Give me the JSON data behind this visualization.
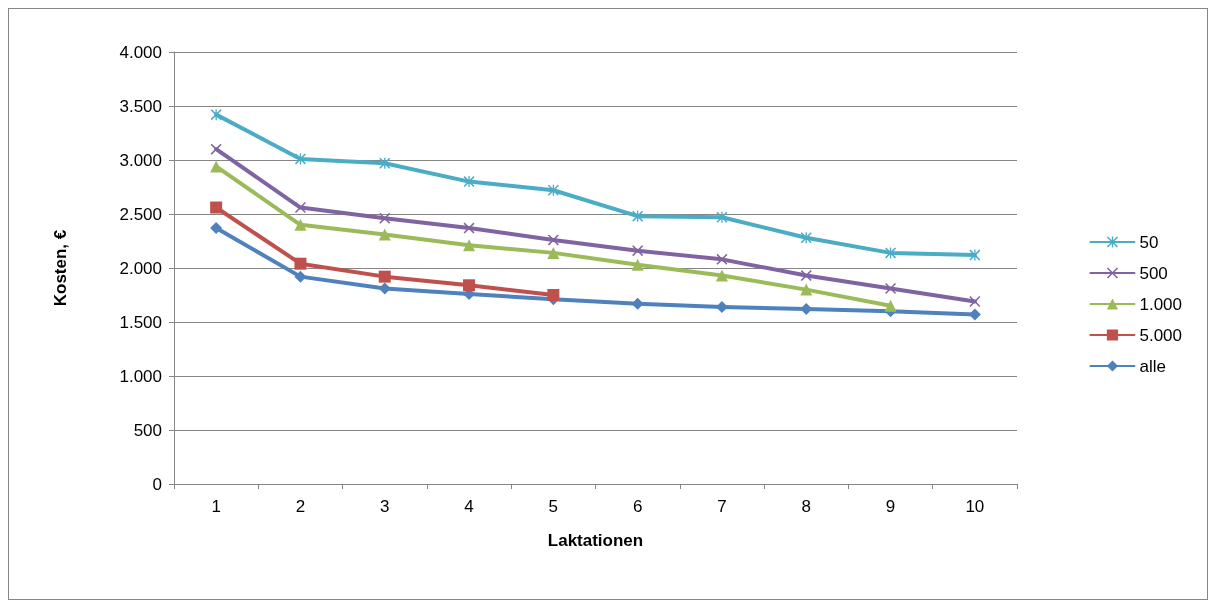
{
  "chart_data": {
    "type": "line",
    "xlabel": "Laktationen",
    "ylabel": "Kosten, €",
    "categories": [
      "1",
      "2",
      "3",
      "4",
      "5",
      "6",
      "7",
      "8",
      "9",
      "10"
    ],
    "ylim": [
      0,
      4000
    ],
    "yticks": [
      0,
      500,
      {
        "value": 1000,
        "label": "1.000"
      },
      {
        "value": 1500,
        "label": "1.500"
      },
      {
        "value": 2000,
        "label": "2.000"
      },
      {
        "value": 2500,
        "label": "2.500"
      },
      {
        "value": 3000,
        "label": "3.000"
      },
      {
        "value": 3500,
        "label": "3.500"
      },
      {
        "value": 4000,
        "label": "4.000"
      }
    ],
    "grid": "y",
    "legend": "right",
    "line_style": "solid",
    "series": [
      {
        "name": "50",
        "color": "#4bacc6",
        "marker": "star",
        "values": [
          3420,
          3010,
          2970,
          2800,
          2720,
          2480,
          2470,
          2280,
          2140,
          2120
        ]
      },
      {
        "name": "500",
        "color": "#8064a2",
        "marker": "cross",
        "values": [
          3100,
          2560,
          2460,
          2370,
          2260,
          2160,
          2080,
          1930,
          1810,
          1690
        ]
      },
      {
        "name": "1.000",
        "color": "#9bbb59",
        "marker": "triangle",
        "values": [
          2940,
          2400,
          2310,
          2210,
          2140,
          2030,
          1930,
          1800,
          1650,
          null
        ]
      },
      {
        "name": "5.000",
        "color": "#c0504d",
        "marker": "square",
        "values": [
          2560,
          2040,
          1920,
          1840,
          1750,
          null,
          null,
          null,
          null,
          null
        ]
      },
      {
        "name": "alle",
        "color": "#4f81bd",
        "marker": "diamond",
        "values": [
          2370,
          1920,
          1810,
          1760,
          1710,
          1670,
          1640,
          1620,
          1600,
          1570
        ]
      }
    ]
  }
}
